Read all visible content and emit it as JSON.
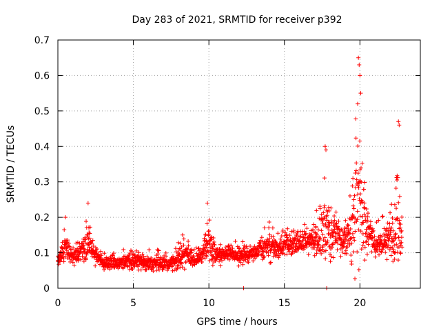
{
  "chart_data": {
    "type": "scatter",
    "title": "Day 283 of 2021, SRMTID for receiver p392",
    "xlabel": "GPS time / hours",
    "ylabel": "SRMTID / TECUs",
    "xlim": [
      0,
      24
    ],
    "ylim": [
      0,
      0.7
    ],
    "xticks": [
      0,
      5,
      10,
      15,
      20
    ],
    "xtick_labels": [
      "0",
      "5",
      "10",
      "15",
      "20"
    ],
    "yticks": [
      0,
      0.1,
      0.2,
      0.3,
      0.4,
      0.5,
      0.6,
      0.7
    ],
    "ytick_labels": [
      "0",
      "0.1",
      "0.2",
      "0.3",
      "0.4",
      "0.5",
      "0.6",
      "0.7"
    ],
    "grid": true,
    "series": [
      {
        "name": "SRMTID",
        "marker": "+",
        "color": "#ff0000",
        "envelope": {
          "x": [
            0.0,
            0.5,
            1.0,
            1.5,
            2.0,
            2.5,
            3.0,
            4.0,
            5.0,
            6.0,
            7.0,
            8.0,
            8.5,
            9.0,
            9.5,
            10.0,
            10.5,
            11.0,
            12.0,
            13.0,
            14.0,
            14.5,
            15.0,
            16.0,
            17.0,
            17.5,
            18.0,
            18.5,
            19.0,
            19.5,
            19.8,
            20.0,
            20.3,
            20.6,
            21.0,
            21.5,
            22.0,
            22.5,
            22.8
          ],
          "center": [
            0.08,
            0.12,
            0.09,
            0.1,
            0.12,
            0.09,
            0.07,
            0.07,
            0.08,
            0.07,
            0.07,
            0.08,
            0.1,
            0.08,
            0.09,
            0.13,
            0.09,
            0.1,
            0.09,
            0.1,
            0.12,
            0.11,
            0.12,
            0.13,
            0.13,
            0.16,
            0.16,
            0.15,
            0.13,
            0.17,
            0.25,
            0.25,
            0.18,
            0.16,
            0.12,
            0.13,
            0.14,
            0.18,
            0.12
          ],
          "spread": [
            0.03,
            0.06,
            0.04,
            0.05,
            0.09,
            0.04,
            0.03,
            0.03,
            0.05,
            0.04,
            0.04,
            0.05,
            0.07,
            0.04,
            0.05,
            0.08,
            0.05,
            0.04,
            0.04,
            0.04,
            0.07,
            0.05,
            0.05,
            0.05,
            0.06,
            0.18,
            0.15,
            0.08,
            0.08,
            0.15,
            0.38,
            0.3,
            0.14,
            0.08,
            0.06,
            0.08,
            0.1,
            0.25,
            0.08
          ]
        },
        "outliers": [
          [
            12.3,
            0.0
          ],
          [
            17.8,
            0.0
          ],
          [
            19.9,
            0.65
          ],
          [
            19.95,
            0.63
          ],
          [
            20.0,
            0.6
          ],
          [
            19.85,
            0.52
          ],
          [
            20.05,
            0.55
          ],
          [
            22.55,
            0.47
          ],
          [
            22.6,
            0.46
          ],
          [
            17.7,
            0.4
          ],
          [
            17.75,
            0.39
          ],
          [
            2.0,
            0.24
          ],
          [
            9.9,
            0.24
          ],
          [
            0.5,
            0.2
          ]
        ]
      }
    ]
  }
}
